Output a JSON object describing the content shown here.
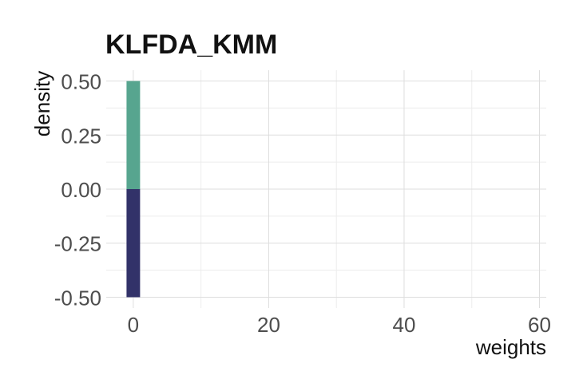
{
  "chart_data": {
    "type": "bar",
    "title": "KLFDA_KMM",
    "xlabel": "weights",
    "ylabel": "density",
    "xlim": [
      -4,
      61
    ],
    "ylim": [
      -0.55,
      0.55
    ],
    "x_ticks": [
      "0",
      "20",
      "40",
      "60"
    ],
    "y_ticks": [
      "0.50",
      "0.25",
      "0.00",
      "-0.25",
      "-0.50"
    ],
    "grid": true,
    "legend": "none",
    "series": [
      {
        "color": "#57a58f",
        "bins": [
          {
            "x_start": -1,
            "x_end": 1,
            "value": 0.5
          }
        ]
      },
      {
        "color": "#323269",
        "bins": [
          {
            "x_start": -1,
            "x_end": 1,
            "value": -0.5
          }
        ]
      }
    ]
  }
}
